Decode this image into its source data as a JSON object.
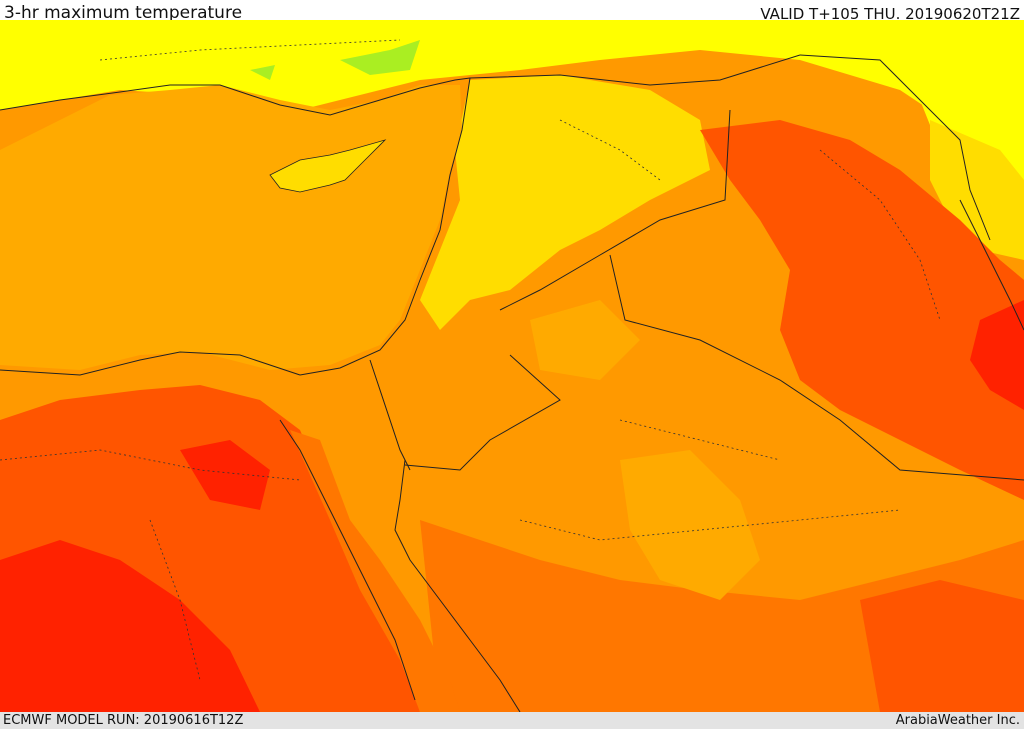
{
  "header": {
    "title": "3-hr maximum temperature",
    "valid": "VALID T+105 THU. 20190620T21Z"
  },
  "footer": {
    "model_run": "ECMWF MODEL RUN: 20190616T12Z",
    "credit": "ArabiaWeather Inc."
  },
  "map": {
    "colors": {
      "sea": "#ffaa00",
      "coolest": "#aaee22",
      "cool": "#ffff00",
      "mild": "#ffdd00",
      "warm": "#ff9900",
      "hot": "#ff7700",
      "hotter": "#ff5500",
      "hottest": "#ff2200",
      "lines": "#222222"
    }
  }
}
